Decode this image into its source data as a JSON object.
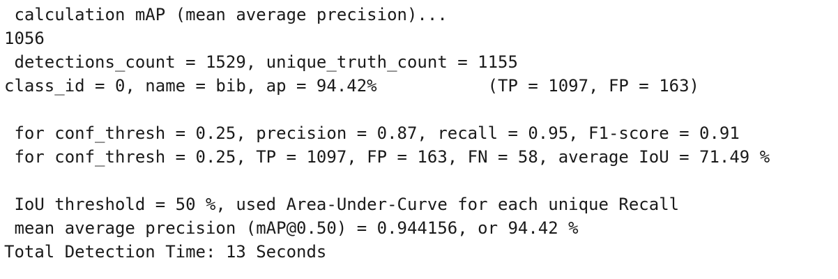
{
  "terminal": {
    "lines": [
      " calculation mAP (mean average precision)...",
      "1056",
      " detections_count = 1529, unique_truth_count = 1155",
      "class_id = 0, name = bib, ap = 94.42%           (TP = 1097, FP = 163)",
      "",
      " for conf_thresh = 0.25, precision = 0.87, recall = 0.95, F1-score = 0.91",
      " for conf_thresh = 0.25, TP = 1097, FP = 163, FN = 58, average IoU = 71.49 %",
      "",
      " IoU threshold = 50 %, used Area-Under-Curve for each unique Recall",
      " mean average precision (mAP@0.50) = 0.944156, or 94.42 %",
      "Total Detection Time: 13 Seconds"
    ]
  }
}
